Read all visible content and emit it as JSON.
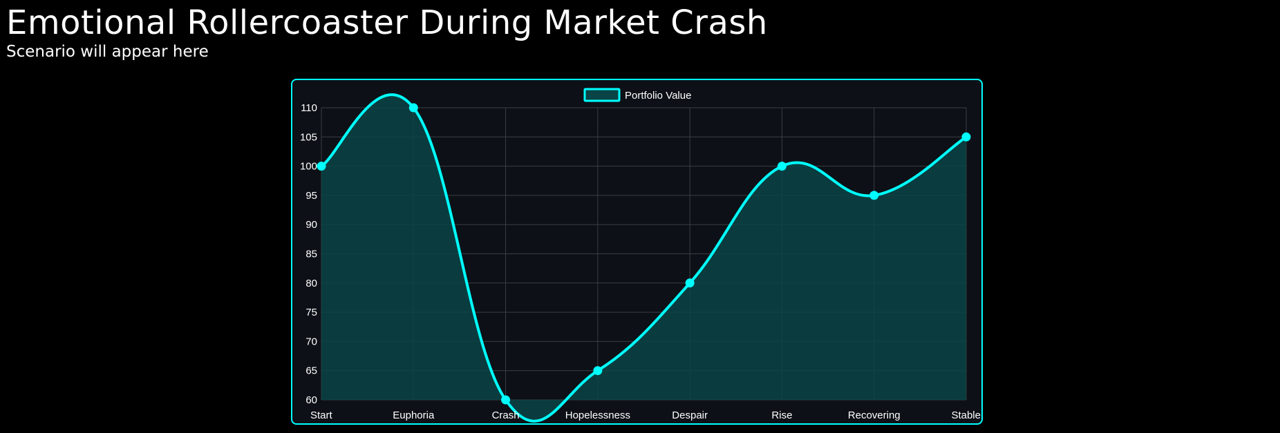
{
  "header": {
    "title": "Emotional Rollercoaster During Market Crash",
    "subtitle": "Scenario will appear here"
  },
  "colors": {
    "background": "#000000",
    "panel": "#0d1117",
    "accent": "#00ffff",
    "fill": "#0a4447",
    "grid": "#3a3f44",
    "text": "#ffffff"
  },
  "chart_data": {
    "type": "line",
    "categories": [
      "Start",
      "Euphoria",
      "Crash",
      "Hopelessness",
      "Despair",
      "Rise",
      "Recovering",
      "Stable"
    ],
    "series": [
      {
        "name": "Portfolio Value",
        "values": [
          100,
          110,
          60,
          65,
          80,
          100,
          95,
          105
        ]
      }
    ],
    "ylim": [
      60,
      110
    ],
    "yticks": [
      110,
      105,
      100,
      95,
      90,
      85,
      80,
      75,
      70,
      65,
      60
    ],
    "grid": true,
    "filled": true,
    "smooth": true,
    "legend_position": "top-center"
  }
}
